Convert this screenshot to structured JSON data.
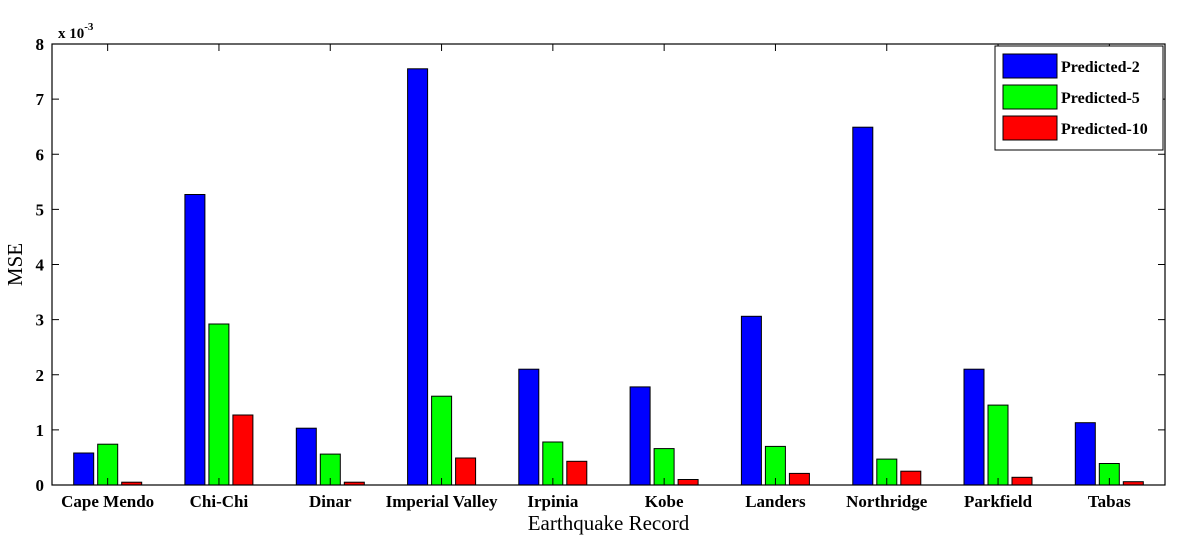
{
  "chart_data": {
    "type": "bar",
    "xlabel": "Earthquake Record",
    "ylabel": "MSE",
    "y_exponent_prefix": "x 10",
    "y_exponent_power": "-3",
    "ylim": [
      0,
      8
    ],
    "yticks": [
      0,
      1,
      2,
      3,
      4,
      5,
      6,
      7,
      8
    ],
    "legend_position": "top-right",
    "grid": false,
    "categories": [
      "Cape Mendo",
      "Chi-Chi",
      "Dinar",
      "Imperial Valley",
      "Irpinia",
      "Kobe",
      "Landers",
      "Northridge",
      "Parkfield",
      "Tabas"
    ],
    "series": [
      {
        "name": "Predicted-2",
        "color": "#0000ff",
        "values": [
          0.58,
          5.27,
          1.03,
          7.55,
          2.1,
          1.78,
          3.06,
          6.49,
          2.1,
          1.13
        ]
      },
      {
        "name": "Predicted-5",
        "color": "#00ff00",
        "values": [
          0.74,
          2.92,
          0.56,
          1.61,
          0.78,
          0.66,
          0.7,
          0.47,
          1.45,
          0.39
        ]
      },
      {
        "name": "Predicted-10",
        "color": "#ff0000",
        "values": [
          0.05,
          1.27,
          0.05,
          0.49,
          0.43,
          0.1,
          0.21,
          0.25,
          0.14,
          0.06
        ]
      }
    ]
  }
}
